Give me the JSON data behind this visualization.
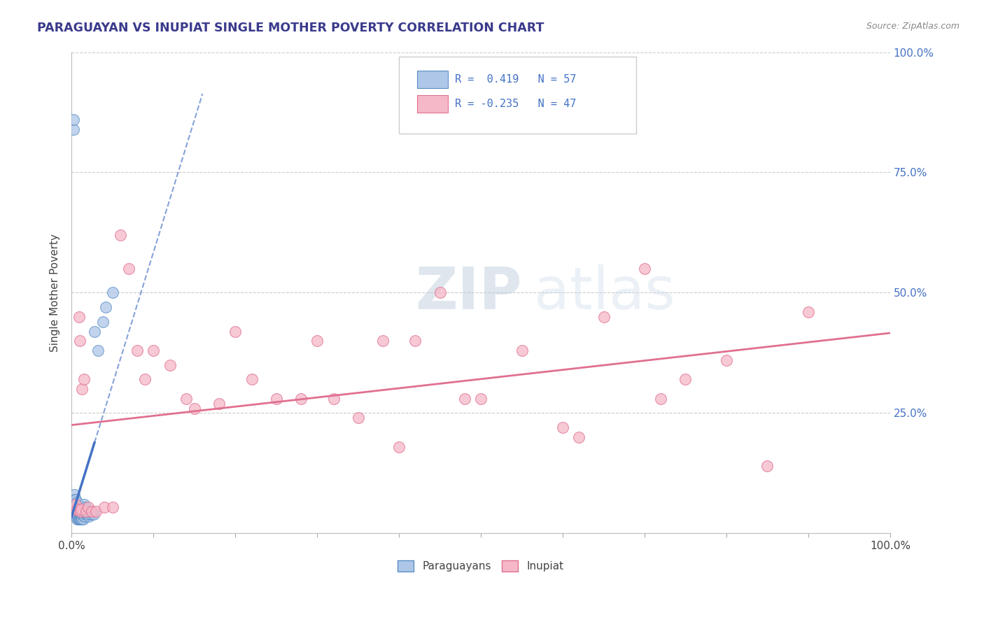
{
  "title": "PARAGUAYAN VS INUPIAT SINGLE MOTHER POVERTY CORRELATION CHART",
  "source": "Source: ZipAtlas.com",
  "ylabel": "Single Mother Poverty",
  "xlim": [
    0,
    1.0
  ],
  "ylim": [
    0,
    1.0
  ],
  "blue_R": 0.419,
  "blue_N": 57,
  "pink_R": -0.235,
  "pink_N": 47,
  "blue_color": "#aec6e8",
  "pink_color": "#f5b8c8",
  "blue_edge_color": "#5b8ec4",
  "pink_edge_color": "#e07090",
  "blue_line_color": "#4472c4",
  "pink_line_color": "#e07090",
  "legend_label1": "Paraguayans",
  "legend_label2": "Inupiat",
  "watermark_zip": "ZIP",
  "watermark_atlas": "atlas",
  "title_color": "#3a3a8c",
  "source_color": "#888888",
  "right_tick_color": "#4472c4",
  "grid_color": "#cccccc",
  "blue_points_x": [
    0.002,
    0.002,
    0.003,
    0.003,
    0.003,
    0.004,
    0.004,
    0.004,
    0.005,
    0.005,
    0.005,
    0.005,
    0.006,
    0.006,
    0.006,
    0.007,
    0.007,
    0.007,
    0.007,
    0.008,
    0.008,
    0.008,
    0.009,
    0.009,
    0.01,
    0.01,
    0.01,
    0.011,
    0.011,
    0.011,
    0.012,
    0.012,
    0.012,
    0.013,
    0.013,
    0.013,
    0.014,
    0.014,
    0.015,
    0.015,
    0.015,
    0.016,
    0.017,
    0.017,
    0.018,
    0.019,
    0.02,
    0.021,
    0.022,
    0.023,
    0.025,
    0.027,
    0.028,
    0.032,
    0.038,
    0.042,
    0.05
  ],
  "blue_points_y": [
    0.84,
    0.86,
    0.05,
    0.06,
    0.08,
    0.04,
    0.05,
    0.07,
    0.035,
    0.045,
    0.055,
    0.07,
    0.035,
    0.04,
    0.055,
    0.03,
    0.04,
    0.05,
    0.065,
    0.03,
    0.04,
    0.055,
    0.03,
    0.045,
    0.03,
    0.04,
    0.055,
    0.03,
    0.04,
    0.055,
    0.03,
    0.04,
    0.055,
    0.03,
    0.04,
    0.055,
    0.03,
    0.04,
    0.035,
    0.045,
    0.06,
    0.035,
    0.04,
    0.055,
    0.04,
    0.04,
    0.04,
    0.035,
    0.04,
    0.045,
    0.04,
    0.04,
    0.42,
    0.38,
    0.44,
    0.47,
    0.5
  ],
  "pink_points_x": [
    0.003,
    0.005,
    0.007,
    0.009,
    0.01,
    0.011,
    0.012,
    0.013,
    0.015,
    0.018,
    0.02,
    0.025,
    0.03,
    0.04,
    0.05,
    0.06,
    0.07,
    0.08,
    0.09,
    0.1,
    0.12,
    0.14,
    0.15,
    0.18,
    0.2,
    0.22,
    0.25,
    0.28,
    0.3,
    0.32,
    0.35,
    0.38,
    0.4,
    0.42,
    0.45,
    0.48,
    0.5,
    0.55,
    0.6,
    0.62,
    0.65,
    0.7,
    0.72,
    0.75,
    0.8,
    0.85,
    0.9
  ],
  "pink_points_y": [
    0.05,
    0.06,
    0.05,
    0.45,
    0.4,
    0.045,
    0.05,
    0.3,
    0.32,
    0.045,
    0.055,
    0.045,
    0.045,
    0.055,
    0.055,
    0.62,
    0.55,
    0.38,
    0.32,
    0.38,
    0.35,
    0.28,
    0.26,
    0.27,
    0.42,
    0.32,
    0.28,
    0.28,
    0.4,
    0.28,
    0.24,
    0.4,
    0.18,
    0.4,
    0.5,
    0.28,
    0.28,
    0.38,
    0.22,
    0.2,
    0.45,
    0.55,
    0.28,
    0.32,
    0.36,
    0.14,
    0.46
  ]
}
